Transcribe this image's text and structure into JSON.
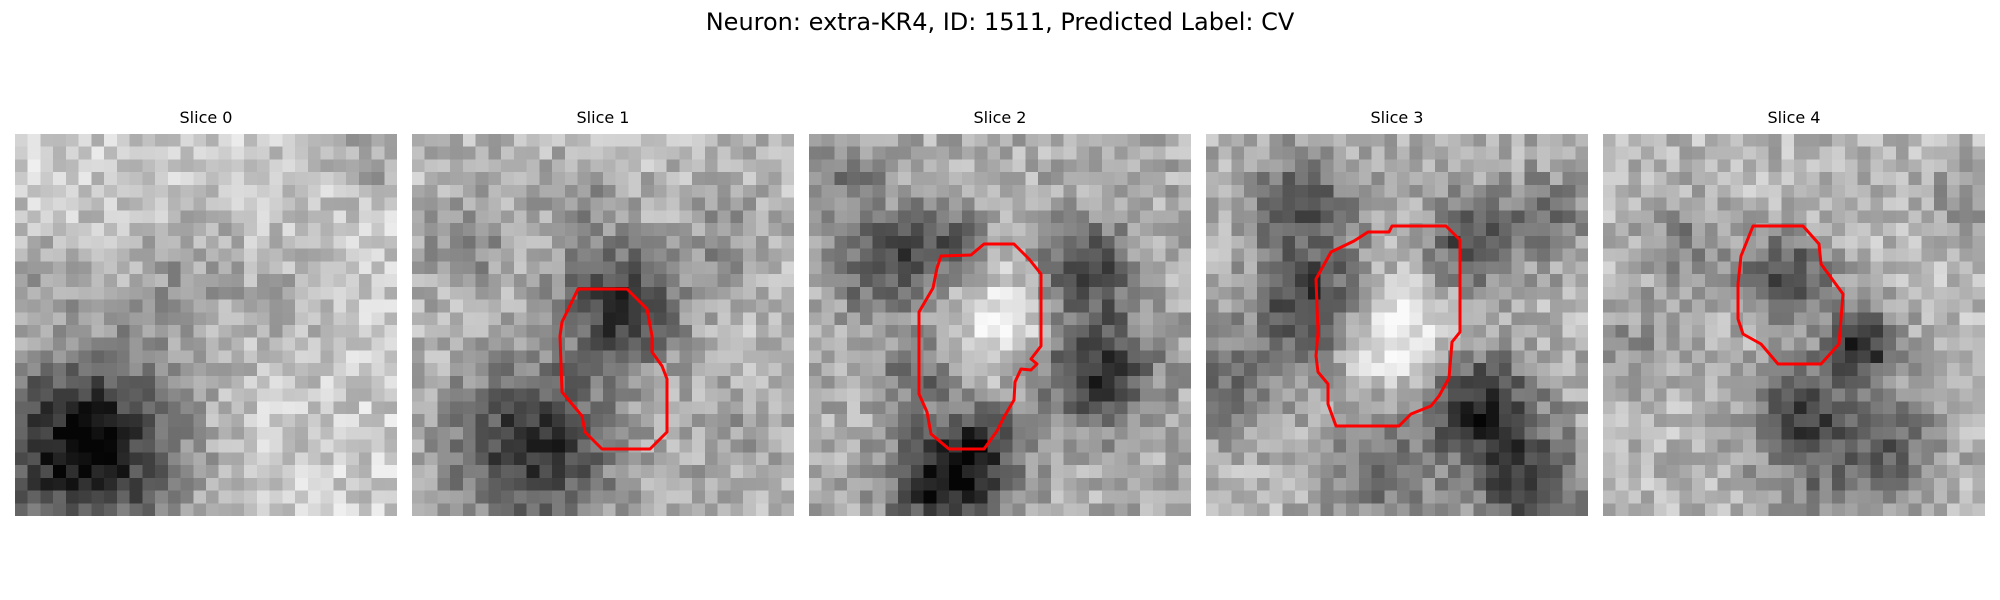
{
  "figure": {
    "title": "Neuron: extra-KR4, ID: 1511, Predicted Label: CV"
  },
  "contour_color": "#ff0000",
  "colormap": "grayscale",
  "slices": [
    {
      "label": "Slice 0",
      "has_contour": false
    },
    {
      "label": "Slice 1",
      "has_contour": true
    },
    {
      "label": "Slice 2",
      "has_contour": true
    },
    {
      "label": "Slice 3",
      "has_contour": true
    },
    {
      "label": "Slice 4",
      "has_contour": true
    }
  ]
}
